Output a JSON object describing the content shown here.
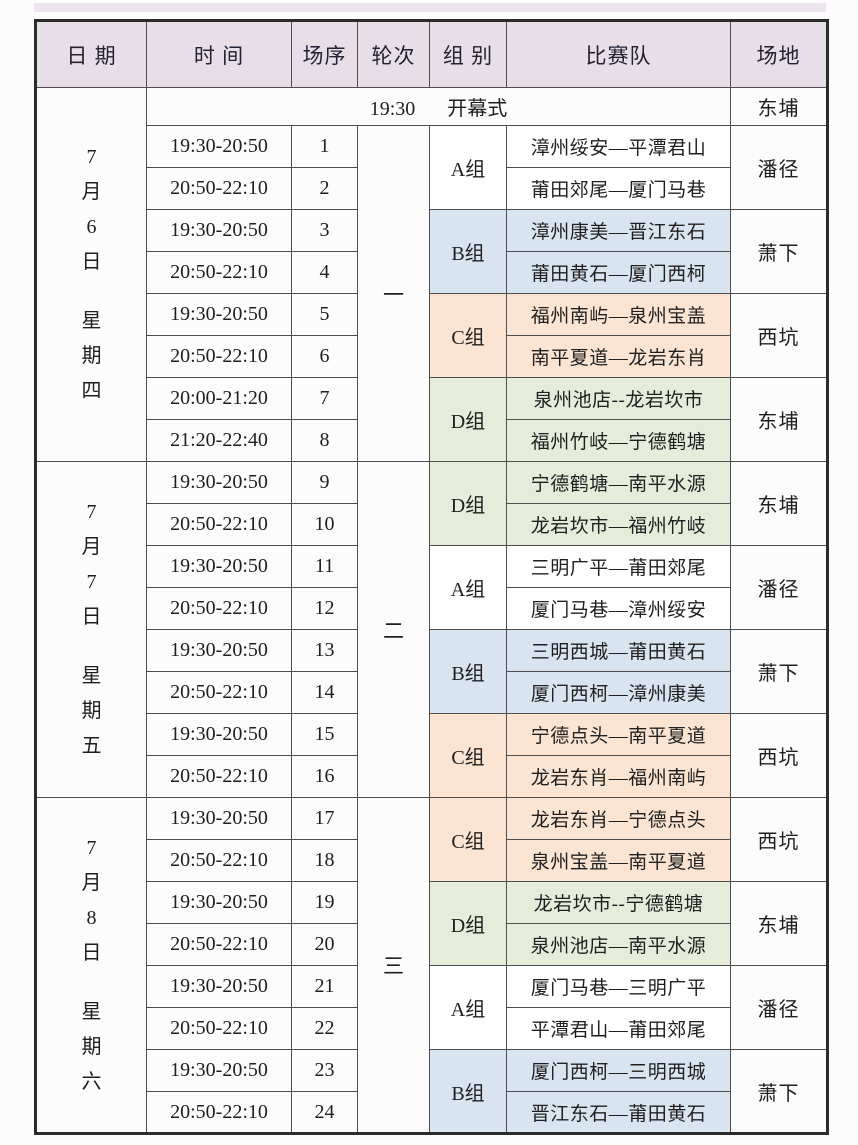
{
  "colors": {
    "header_bg": "#e8dee8",
    "group_A": "#ffffff",
    "group_B": "#d8e4f0",
    "group_C": "#fbe4d1",
    "group_D": "#e5edda",
    "border_outer": "#2b2b2b",
    "border_inner": "#4e4e4e",
    "text": "#1f1f1f"
  },
  "table": {
    "columns": [
      "日 期",
      "时 间",
      "场序",
      "轮次",
      "组 别",
      "比赛队",
      "场地"
    ],
    "opening": {
      "time": "19:30",
      "label": "开幕式",
      "venue": "东埔"
    },
    "days": [
      {
        "date": "7月6日",
        "weekday": "星期四",
        "round": "一",
        "blocks": [
          {
            "group": "A组",
            "group_key": "A",
            "venue": "潘径",
            "matches": [
              {
                "time": "19:30-20:50",
                "seq": "1",
                "teams": "漳州绥安—平潭君山"
              },
              {
                "time": "20:50-22:10",
                "seq": "2",
                "teams": "莆田郊尾—厦门马巷"
              }
            ]
          },
          {
            "group": "B组",
            "group_key": "B",
            "venue": "萧下",
            "matches": [
              {
                "time": "19:30-20:50",
                "seq": "3",
                "teams": "漳州康美—晋江东石"
              },
              {
                "time": "20:50-22:10",
                "seq": "4",
                "teams": "莆田黄石—厦门西柯"
              }
            ]
          },
          {
            "group": "C组",
            "group_key": "C",
            "venue": "西坑",
            "matches": [
              {
                "time": "19:30-20:50",
                "seq": "5",
                "teams": "福州南屿—泉州宝盖"
              },
              {
                "time": "20:50-22:10",
                "seq": "6",
                "teams": "南平夏道—龙岩东肖"
              }
            ]
          },
          {
            "group": "D组",
            "group_key": "D",
            "venue": "东埔",
            "matches": [
              {
                "time": "20:00-21:20",
                "seq": "7",
                "teams": "泉州池店--龙岩坎市"
              },
              {
                "time": "21:20-22:40",
                "seq": "8",
                "teams": "福州竹岐—宁德鹤塘"
              }
            ]
          }
        ]
      },
      {
        "date": "7月7日",
        "weekday": "星期五",
        "round": "二",
        "blocks": [
          {
            "group": "D组",
            "group_key": "D",
            "venue": "东埔",
            "matches": [
              {
                "time": "19:30-20:50",
                "seq": "9",
                "teams": "宁德鹤塘—南平水源"
              },
              {
                "time": "20:50-22:10",
                "seq": "10",
                "teams": "龙岩坎市—福州竹岐"
              }
            ]
          },
          {
            "group": "A组",
            "group_key": "A",
            "venue": "潘径",
            "matches": [
              {
                "time": "19:30-20:50",
                "seq": "11",
                "teams": "三明广平—莆田郊尾"
              },
              {
                "time": "20:50-22:10",
                "seq": "12",
                "teams": "厦门马巷—漳州绥安"
              }
            ]
          },
          {
            "group": "B组",
            "group_key": "B",
            "venue": "萧下",
            "matches": [
              {
                "time": "19:30-20:50",
                "seq": "13",
                "teams": "三明西城—莆田黄石"
              },
              {
                "time": "20:50-22:10",
                "seq": "14",
                "teams": "厦门西柯—漳州康美"
              }
            ]
          },
          {
            "group": "C组",
            "group_key": "C",
            "venue": "西坑",
            "matches": [
              {
                "time": "19:30-20:50",
                "seq": "15",
                "teams": "宁德点头—南平夏道"
              },
              {
                "time": "20:50-22:10",
                "seq": "16",
                "teams": "龙岩东肖—福州南屿"
              }
            ]
          }
        ]
      },
      {
        "date": "7月8日",
        "weekday": "星期六",
        "round": "三",
        "blocks": [
          {
            "group": "C组",
            "group_key": "C",
            "venue": "西坑",
            "matches": [
              {
                "time": "19:30-20:50",
                "seq": "17",
                "teams": "龙岩东肖—宁德点头"
              },
              {
                "time": "20:50-22:10",
                "seq": "18",
                "teams": "泉州宝盖—南平夏道"
              }
            ]
          },
          {
            "group": "D组",
            "group_key": "D",
            "venue": "东埔",
            "matches": [
              {
                "time": "19:30-20:50",
                "seq": "19",
                "teams": "龙岩坎市--宁德鹤塘"
              },
              {
                "time": "20:50-22:10",
                "seq": "20",
                "teams": "泉州池店—南平水源"
              }
            ]
          },
          {
            "group": "A组",
            "group_key": "A",
            "venue": "潘径",
            "matches": [
              {
                "time": "19:30-20:50",
                "seq": "21",
                "teams": "厦门马巷—三明广平"
              },
              {
                "time": "20:50-22:10",
                "seq": "22",
                "teams": "平潭君山—莆田郊尾"
              }
            ]
          },
          {
            "group": "B组",
            "group_key": "B",
            "venue": "萧下",
            "matches": [
              {
                "time": "19:30-20:50",
                "seq": "23",
                "teams": "厦门西柯—三明西城"
              },
              {
                "time": "20:50-22:10",
                "seq": "24",
                "teams": "晋江东石—莆田黄石"
              }
            ]
          }
        ]
      }
    ]
  }
}
